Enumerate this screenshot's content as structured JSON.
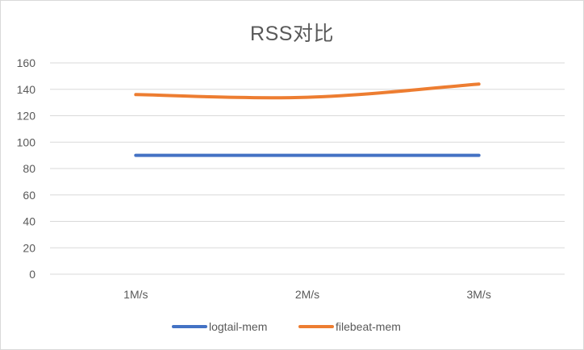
{
  "chart_data": {
    "type": "line",
    "title": "RSS对比",
    "categories": [
      "1M/s",
      "2M/s",
      "3M/s"
    ],
    "series": [
      {
        "name": "logtail-mem",
        "values": [
          90,
          90,
          90
        ],
        "color": "#4472c4"
      },
      {
        "name": "filebeat-mem",
        "values": [
          136,
          134,
          144
        ],
        "color": "#ed7d31"
      }
    ],
    "ylim": [
      0,
      160
    ],
    "yticks": [
      0,
      20,
      40,
      60,
      80,
      100,
      120,
      140,
      160
    ],
    "grid": true,
    "legend_position": "bottom",
    "gridline_color": "#d9d9d9"
  }
}
